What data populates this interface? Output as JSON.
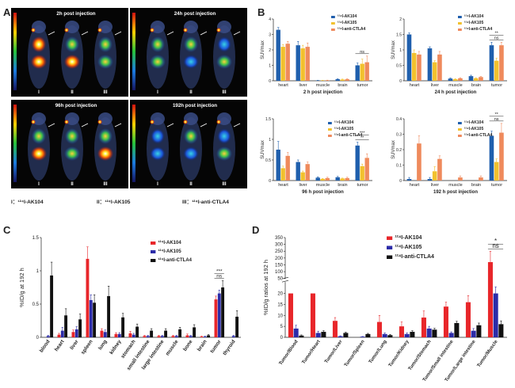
{
  "panels": {
    "A": {
      "letter": "A",
      "timepoints": [
        "2h post injection",
        "24h post injection",
        "96h post injection",
        "192h post injection"
      ],
      "mouse_labels": [
        "I",
        "II",
        "III"
      ],
      "legend": [
        "I：¹²⁴I-AK104",
        "II：¹²⁴I-AK105",
        "III：¹²⁴I-anti-CTLA4"
      ]
    },
    "B": {
      "letter": "B"
    },
    "C": {
      "letter": "C"
    },
    "D": {
      "letter": "D"
    }
  },
  "chart_data": [
    {
      "id": "B1",
      "type": "bar",
      "title": "2 h post injection",
      "ylabel": "SUVmax",
      "categories": [
        "heart",
        "liver",
        "muscle",
        "brain",
        "tumor"
      ],
      "ylim": [
        0,
        4
      ],
      "yticks": [
        0,
        1,
        2,
        3,
        4
      ],
      "series": [
        {
          "name": "¹²⁴I-AK104",
          "color": "#1f5fad",
          "values": [
            3.3,
            2.3,
            0.02,
            0.1,
            1.0
          ],
          "errors": [
            0.15,
            0.25,
            0.01,
            0.03,
            0.15
          ]
        },
        {
          "name": "¹²⁴I-AK105",
          "color": "#f2c12e",
          "values": [
            2.2,
            2.1,
            0.02,
            0.08,
            1.1
          ],
          "errors": [
            0.15,
            0.2,
            0.01,
            0.03,
            0.3
          ]
        },
        {
          "name": "¹²⁴I-anti-CTLA4",
          "color": "#ef8a5c",
          "values": [
            2.4,
            2.2,
            0.03,
            0.1,
            1.2
          ],
          "errors": [
            0.15,
            0.25,
            0.01,
            0.03,
            0.4
          ]
        }
      ],
      "annotations": [
        {
          "text": "ns",
          "category": "tumor"
        }
      ]
    },
    {
      "id": "B2",
      "type": "bar",
      "title": "24 h post injection",
      "ylabel": "SUVmax",
      "categories": [
        "heart",
        "liver",
        "muscle",
        "brain",
        "tumor"
      ],
      "ylim": [
        0,
        2.0
      ],
      "yticks": [
        0,
        0.5,
        1.0,
        1.5,
        2.0
      ],
      "series": [
        {
          "name": "¹²⁴I-AK104",
          "color": "#1f5fad",
          "values": [
            1.5,
            1.05,
            0.07,
            0.15,
            1.15
          ],
          "errors": [
            0.05,
            0.05,
            0.02,
            0.03,
            0.1
          ]
        },
        {
          "name": "¹²⁴I-AK105",
          "color": "#f2c12e",
          "values": [
            0.9,
            0.6,
            0.05,
            0.08,
            0.65
          ],
          "errors": [
            0.1,
            0.05,
            0.02,
            0.02,
            0.08
          ]
        },
        {
          "name": "¹²⁴I-anti-CTLA4",
          "color": "#ef8a5c",
          "values": [
            0.85,
            0.85,
            0.08,
            0.12,
            1.15
          ],
          "errors": [
            0.1,
            0.1,
            0.02,
            0.02,
            0.1
          ]
        }
      ],
      "annotations": [
        {
          "text": "ns",
          "category": "tumor"
        },
        {
          "text": "**",
          "category": "tumor"
        }
      ]
    },
    {
      "id": "B3",
      "type": "bar",
      "title": "96 h post injection",
      "ylabel": "SUVmax",
      "categories": [
        "heart",
        "liver",
        "muscle",
        "brain",
        "tumor"
      ],
      "ylim": [
        0,
        1.5
      ],
      "yticks": [
        0,
        0.5,
        1.0,
        1.5
      ],
      "series": [
        {
          "name": "¹²⁴I-AK104",
          "color": "#1f5fad",
          "values": [
            0.75,
            0.45,
            0.07,
            0.08,
            0.85
          ],
          "errors": [
            0.2,
            0.05,
            0.02,
            0.02,
            0.08
          ]
        },
        {
          "name": "¹²⁴I-AK105",
          "color": "#f2c12e",
          "values": [
            0.3,
            0.2,
            0.04,
            0.05,
            0.35
          ],
          "errors": [
            0.05,
            0.03,
            0.01,
            0.01,
            0.05
          ]
        },
        {
          "name": "¹²⁴I-anti-CTLA4",
          "color": "#ef8a5c",
          "values": [
            0.6,
            0.4,
            0.06,
            0.06,
            0.55
          ],
          "errors": [
            0.08,
            0.05,
            0.02,
            0.02,
            0.1
          ]
        }
      ],
      "annotations": [
        {
          "text": "**",
          "category": "tumor"
        },
        {
          "text": "***",
          "category": "tumor"
        }
      ]
    },
    {
      "id": "B4",
      "type": "bar",
      "title": "192 h post injection",
      "ylabel": "SUVmax",
      "categories": [
        "heart",
        "liver",
        "muscle",
        "brain",
        "tumor"
      ],
      "ylim": [
        0,
        0.4
      ],
      "yticks": [
        0,
        0.1,
        0.2,
        0.3,
        0.4
      ],
      "series": [
        {
          "name": "¹²⁴I-AK104",
          "color": "#1f5fad",
          "values": [
            0.01,
            0.01,
            0.0,
            0.0,
            0.29
          ],
          "errors": [
            0.01,
            0.01,
            0.0,
            0.0,
            0.03
          ]
        },
        {
          "name": "¹²⁴I-AK105",
          "color": "#f2c12e",
          "values": [
            0.0,
            0.06,
            0.0,
            0.0,
            0.12
          ],
          "errors": [
            0.0,
            0.03,
            0.0,
            0.0,
            0.02
          ]
        },
        {
          "name": "¹²⁴I-anti-CTLA4",
          "color": "#ef8a5c",
          "values": [
            0.24,
            0.14,
            0.02,
            0.02,
            0.31
          ],
          "errors": [
            0.05,
            0.02,
            0.01,
            0.01,
            0.06
          ]
        }
      ],
      "annotations": [
        {
          "text": "ns",
          "category": "tumor"
        },
        {
          "text": "**",
          "category": "tumor"
        }
      ]
    },
    {
      "id": "C",
      "type": "bar",
      "ylabel": "%ID/g at 192 h",
      "categories": [
        "blood",
        "heart",
        "liver",
        "spleen",
        "lung",
        "kidney",
        "stomach",
        "small intestine",
        "large intestine",
        "muscle",
        "bone",
        "brain",
        "tumor",
        "thyroid"
      ],
      "ylim": [
        0,
        1.5
      ],
      "yticks": [
        0,
        0.5,
        1.0,
        1.5
      ],
      "series": [
        {
          "name": "¹²⁴I-AK104",
          "color": "#e8262a",
          "values": [
            0.0,
            0.04,
            0.08,
            1.18,
            0.1,
            0.05,
            0.06,
            0.02,
            0.02,
            0.02,
            0.03,
            0.01,
            0.57,
            0.0
          ],
          "errors": [
            0.0,
            0.02,
            0.03,
            0.18,
            0.03,
            0.02,
            0.03,
            0.01,
            0.01,
            0.01,
            0.02,
            0.01,
            0.05,
            0.0
          ]
        },
        {
          "name": "¹²⁴I-AK105",
          "color": "#2c2ca8",
          "values": [
            0.02,
            0.1,
            0.12,
            0.56,
            0.08,
            0.05,
            0.04,
            0.02,
            0.02,
            0.02,
            0.02,
            0.01,
            0.66,
            0.02
          ],
          "errors": [
            0.01,
            0.05,
            0.04,
            0.08,
            0.03,
            0.02,
            0.02,
            0.01,
            0.01,
            0.01,
            0.01,
            0.01,
            0.05,
            0.01
          ]
        },
        {
          "name": "¹²⁴I-anti-CTLA4",
          "color": "#111111",
          "values": [
            0.93,
            0.33,
            0.27,
            0.52,
            0.62,
            0.3,
            0.16,
            0.1,
            0.1,
            0.12,
            0.15,
            0.03,
            0.75,
            0.31
          ],
          "errors": [
            0.2,
            0.1,
            0.08,
            0.12,
            0.15,
            0.06,
            0.04,
            0.03,
            0.03,
            0.03,
            0.04,
            0.01,
            0.1,
            0.09
          ]
        }
      ],
      "annotations": [
        {
          "text": "ns",
          "category": "tumor"
        },
        {
          "text": "***",
          "category": "tumor"
        }
      ]
    },
    {
      "id": "D",
      "type": "bar",
      "ylabel": "%ID/g ratios at 192 h",
      "categories": [
        "Tumor/Blood",
        "Tumor/Heart",
        "Tumor/Liver",
        "Tumor/Spleen",
        "Tumor/Lung",
        "Tumor/Kidney",
        "Tumor/Stomach",
        "Tumor/Small intestine",
        "Tumor/Large intestine",
        "Tumor/Muscle"
      ],
      "ylim": [
        0,
        350
      ],
      "axis_break": [
        25,
        50
      ],
      "yticks": [
        0,
        5,
        10,
        15,
        20,
        50,
        100,
        150,
        200,
        250,
        300,
        350
      ],
      "series": [
        {
          "name": "¹²⁴I-AK104",
          "color": "#e8262a",
          "values": [
            20,
            20,
            7.5,
            0,
            7,
            5,
            9,
            14,
            16,
            170
          ],
          "errors": [
            0,
            0,
            1.5,
            0,
            3,
            2,
            3,
            2,
            3,
            80
          ]
        },
        {
          "name": "¹²⁴I-AK105",
          "color": "#2c2ca8",
          "values": [
            4,
            2,
            0.5,
            0.3,
            1.5,
            1.5,
            4,
            2,
            3,
            20
          ],
          "errors": [
            1.5,
            0.8,
            0.2,
            0.1,
            0.5,
            0.5,
            1,
            0.5,
            1,
            3
          ]
        },
        {
          "name": "¹²⁴I-anti-CTLA4",
          "color": "#111111",
          "values": [
            0.8,
            2.5,
            2,
            1.5,
            1,
            2.5,
            3.5,
            6.5,
            5.5,
            6
          ],
          "errors": [
            0.3,
            0.5,
            0.3,
            0.3,
            0.3,
            0.5,
            0.6,
            0.8,
            1,
            1.5
          ]
        }
      ],
      "annotations": [
        {
          "text": "ns",
          "category": "Tumor/Muscle"
        },
        {
          "text": "*",
          "category": "Tumor/Muscle"
        }
      ]
    }
  ]
}
